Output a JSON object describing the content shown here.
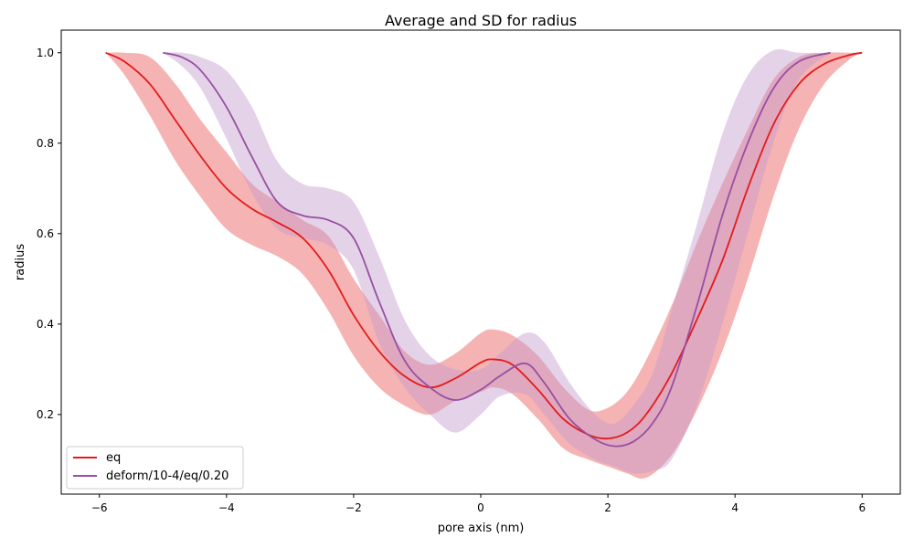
{
  "chart_data": {
    "type": "line",
    "title": "Average and SD for radius",
    "xlabel": "pore axis (nm)",
    "ylabel": "radius",
    "xlim": [
      -6.6,
      6.6
    ],
    "ylim": [
      0.024,
      1.05
    ],
    "x_ticks": [
      -6,
      -4,
      -2,
      0,
      2,
      4,
      6
    ],
    "x_tick_labels": [
      "−6",
      "−4",
      "−2",
      "0",
      "2",
      "4",
      "6"
    ],
    "y_ticks": [
      0.2,
      0.4,
      0.6,
      0.8,
      1.0
    ],
    "y_tick_labels": [
      "0.2",
      "0.4",
      "0.6",
      "0.8",
      "1.0"
    ],
    "grid": false,
    "legend_position": "lower-left",
    "series": [
      {
        "name": "eq",
        "color": "#e41a1c",
        "band_color": "#f08080",
        "points": [
          {
            "x": -5.9,
            "y": 1.0,
            "lo": 1.0,
            "hi": 1.0
          },
          {
            "x": -5.6,
            "y": 0.98,
            "lo": 0.95,
            "hi": 1.0
          },
          {
            "x": -5.2,
            "y": 0.93,
            "lo": 0.86,
            "hi": 0.99
          },
          {
            "x": -4.8,
            "y": 0.85,
            "lo": 0.76,
            "hi": 0.93
          },
          {
            "x": -4.4,
            "y": 0.77,
            "lo": 0.68,
            "hi": 0.85
          },
          {
            "x": -4.0,
            "y": 0.7,
            "lo": 0.61,
            "hi": 0.78
          },
          {
            "x": -3.6,
            "y": 0.655,
            "lo": 0.575,
            "hi": 0.71
          },
          {
            "x": -3.2,
            "y": 0.625,
            "lo": 0.55,
            "hi": 0.67
          },
          {
            "x": -2.8,
            "y": 0.59,
            "lo": 0.51,
            "hi": 0.63
          },
          {
            "x": -2.4,
            "y": 0.52,
            "lo": 0.43,
            "hi": 0.595
          },
          {
            "x": -2.0,
            "y": 0.42,
            "lo": 0.33,
            "hi": 0.5
          },
          {
            "x": -1.6,
            "y": 0.34,
            "lo": 0.26,
            "hi": 0.42
          },
          {
            "x": -1.2,
            "y": 0.285,
            "lo": 0.22,
            "hi": 0.34
          },
          {
            "x": -0.8,
            "y": 0.26,
            "lo": 0.2,
            "hi": 0.31
          },
          {
            "x": -0.4,
            "y": 0.28,
            "lo": 0.23,
            "hi": 0.335
          },
          {
            "x": 0.0,
            "y": 0.315,
            "lo": 0.25,
            "hi": 0.38
          },
          {
            "x": 0.2,
            "y": 0.322,
            "lo": 0.26,
            "hi": 0.388
          },
          {
            "x": 0.5,
            "y": 0.31,
            "lo": 0.245,
            "hi": 0.375
          },
          {
            "x": 0.9,
            "y": 0.255,
            "lo": 0.19,
            "hi": 0.33
          },
          {
            "x": 1.3,
            "y": 0.19,
            "lo": 0.125,
            "hi": 0.26
          },
          {
            "x": 1.7,
            "y": 0.155,
            "lo": 0.1,
            "hi": 0.21
          },
          {
            "x": 2.0,
            "y": 0.147,
            "lo": 0.085,
            "hi": 0.215
          },
          {
            "x": 2.3,
            "y": 0.16,
            "lo": 0.07,
            "hi": 0.25
          },
          {
            "x": 2.6,
            "y": 0.2,
            "lo": 0.06,
            "hi": 0.32
          },
          {
            "x": 3.0,
            "y": 0.29,
            "lo": 0.11,
            "hi": 0.44
          },
          {
            "x": 3.4,
            "y": 0.41,
            "lo": 0.21,
            "hi": 0.58
          },
          {
            "x": 3.8,
            "y": 0.54,
            "lo": 0.34,
            "hi": 0.71
          },
          {
            "x": 4.2,
            "y": 0.7,
            "lo": 0.5,
            "hi": 0.83
          },
          {
            "x": 4.6,
            "y": 0.84,
            "lo": 0.68,
            "hi": 0.94
          },
          {
            "x": 5.0,
            "y": 0.93,
            "lo": 0.83,
            "hi": 0.99
          },
          {
            "x": 5.4,
            "y": 0.975,
            "lo": 0.93,
            "hi": 1.0
          },
          {
            "x": 5.8,
            "y": 0.995,
            "lo": 0.985,
            "hi": 1.0
          },
          {
            "x": 6.0,
            "y": 1.0,
            "lo": 1.0,
            "hi": 1.0
          }
        ]
      },
      {
        "name": "deform/10-4/eq/0.20",
        "color": "#984ea3",
        "band_color": "#c39bcc",
        "points": [
          {
            "x": -5.0,
            "y": 1.0,
            "lo": 1.0,
            "hi": 1.0
          },
          {
            "x": -4.7,
            "y": 0.99,
            "lo": 0.97,
            "hi": 1.0
          },
          {
            "x": -4.4,
            "y": 0.96,
            "lo": 0.92,
            "hi": 0.99
          },
          {
            "x": -4.0,
            "y": 0.88,
            "lo": 0.81,
            "hi": 0.96
          },
          {
            "x": -3.6,
            "y": 0.77,
            "lo": 0.69,
            "hi": 0.88
          },
          {
            "x": -3.2,
            "y": 0.67,
            "lo": 0.61,
            "hi": 0.76
          },
          {
            "x": -2.8,
            "y": 0.64,
            "lo": 0.59,
            "hi": 0.71
          },
          {
            "x": -2.4,
            "y": 0.63,
            "lo": 0.575,
            "hi": 0.7
          },
          {
            "x": -2.0,
            "y": 0.59,
            "lo": 0.52,
            "hi": 0.67
          },
          {
            "x": -1.6,
            "y": 0.45,
            "lo": 0.36,
            "hi": 0.55
          },
          {
            "x": -1.2,
            "y": 0.32,
            "lo": 0.26,
            "hi": 0.41
          },
          {
            "x": -0.8,
            "y": 0.26,
            "lo": 0.2,
            "hi": 0.33
          },
          {
            "x": -0.4,
            "y": 0.232,
            "lo": 0.16,
            "hi": 0.3
          },
          {
            "x": 0.0,
            "y": 0.255,
            "lo": 0.2,
            "hi": 0.3
          },
          {
            "x": 0.3,
            "y": 0.285,
            "lo": 0.24,
            "hi": 0.335
          },
          {
            "x": 0.7,
            "y": 0.313,
            "lo": 0.245,
            "hi": 0.38
          },
          {
            "x": 1.0,
            "y": 0.27,
            "lo": 0.2,
            "hi": 0.36
          },
          {
            "x": 1.4,
            "y": 0.19,
            "lo": 0.135,
            "hi": 0.27
          },
          {
            "x": 1.8,
            "y": 0.145,
            "lo": 0.1,
            "hi": 0.2
          },
          {
            "x": 2.1,
            "y": 0.13,
            "lo": 0.085,
            "hi": 0.18
          },
          {
            "x": 2.4,
            "y": 0.14,
            "lo": 0.07,
            "hi": 0.22
          },
          {
            "x": 2.7,
            "y": 0.18,
            "lo": 0.075,
            "hi": 0.29
          },
          {
            "x": 3.0,
            "y": 0.26,
            "lo": 0.1,
            "hi": 0.43
          },
          {
            "x": 3.4,
            "y": 0.44,
            "lo": 0.22,
            "hi": 0.62
          },
          {
            "x": 3.8,
            "y": 0.64,
            "lo": 0.4,
            "hi": 0.82
          },
          {
            "x": 4.2,
            "y": 0.8,
            "lo": 0.6,
            "hi": 0.95
          },
          {
            "x": 4.6,
            "y": 0.92,
            "lo": 0.8,
            "hi": 1.005
          },
          {
            "x": 5.0,
            "y": 0.98,
            "lo": 0.94,
            "hi": 1.0
          },
          {
            "x": 5.5,
            "y": 1.0,
            "lo": 1.0,
            "hi": 1.0
          }
        ]
      }
    ]
  }
}
